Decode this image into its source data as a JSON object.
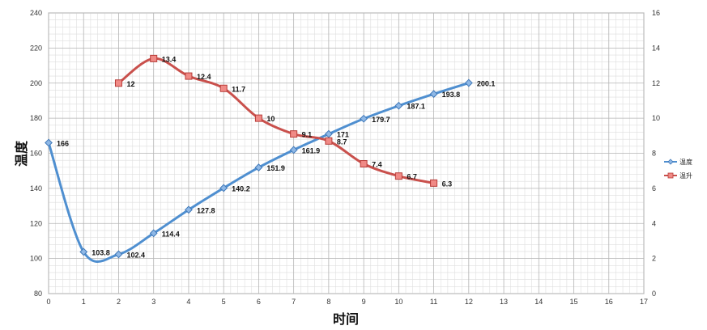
{
  "chart_data": {
    "type": "line",
    "title": "",
    "xlabel": "时间",
    "ylabel": "温度",
    "y2label": "",
    "xlim": [
      0,
      17
    ],
    "ylim": [
      80,
      240
    ],
    "y2lim": [
      0,
      16
    ],
    "x_ticks": [
      0,
      1,
      2,
      3,
      4,
      5,
      6,
      7,
      8,
      9,
      10,
      11,
      12,
      13,
      14,
      15,
      16,
      17
    ],
    "y_ticks": [
      80,
      100,
      120,
      140,
      160,
      180,
      200,
      220,
      240
    ],
    "y2_ticks": [
      0,
      2,
      4,
      6,
      8,
      10,
      12,
      14,
      16
    ],
    "grid": true,
    "legend_position": "right",
    "series": [
      {
        "name": "温度",
        "axis": "left",
        "color": "#4f8fd0",
        "marker": "diamond",
        "x": [
          0,
          1,
          2,
          3,
          4,
          5,
          6,
          7,
          8,
          9,
          10,
          11,
          12
        ],
        "values": [
          166,
          103.8,
          102.4,
          114.4,
          127.8,
          140.2,
          151.9,
          161.9,
          171,
          179.7,
          187.1,
          193.8,
          200.1
        ],
        "labels": [
          "166",
          "103.8",
          "102.4",
          "114.4",
          "127.8",
          "140.2",
          "151.9",
          "161.9",
          "171",
          "179.7",
          "187.1",
          "193.8",
          "200.1"
        ]
      },
      {
        "name": "温升",
        "axis": "right",
        "color": "#c9504c",
        "marker": "square",
        "x": [
          2,
          3,
          4,
          5,
          6,
          7,
          8,
          9,
          10,
          11
        ],
        "values": [
          12,
          13.4,
          12.4,
          11.7,
          10,
          9.1,
          8.7,
          7.4,
          6.7,
          6.3
        ],
        "labels": [
          "12",
          "13.4",
          "12.4",
          "11.7",
          "10",
          "9.1",
          "8.7",
          "7.4",
          "6.7",
          "6.3"
        ]
      }
    ]
  }
}
